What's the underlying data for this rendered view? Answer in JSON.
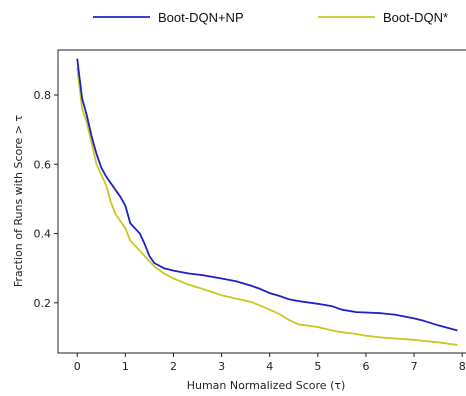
{
  "chart_data": {
    "type": "line",
    "title": "",
    "xlabel": "Human Normalized Score (τ)",
    "ylabel": "Fraction of Runs with Score > τ",
    "xlim": [
      -0.4,
      8.1
    ],
    "ylim": [
      0.055,
      0.93
    ],
    "xticks": [
      0,
      1,
      2,
      3,
      4,
      5,
      6,
      7,
      8
    ],
    "xtick_labels": [
      "0",
      "1",
      "2",
      "3",
      "4",
      "5",
      "6",
      "7",
      "8"
    ],
    "yticks": [
      0.2,
      0.4,
      0.6,
      0.8
    ],
    "ytick_labels": [
      "0.2",
      "0.4",
      "0.6",
      "0.8"
    ],
    "grid": false,
    "legend_position": "top (above plot), two columns",
    "series": [
      {
        "name": "Boot-DQN+NP",
        "color": "#1f1fc8",
        "x": [
          0.0,
          0.1,
          0.2,
          0.3,
          0.4,
          0.5,
          0.6,
          0.7,
          0.8,
          0.9,
          1.0,
          1.1,
          1.2,
          1.3,
          1.4,
          1.5,
          1.6,
          1.8,
          2.0,
          2.3,
          2.6,
          3.0,
          3.3,
          3.6,
          3.8,
          4.0,
          4.2,
          4.4,
          4.6,
          5.0,
          5.3,
          5.5,
          5.8,
          6.0,
          6.3,
          6.6,
          7.0,
          7.2,
          7.5,
          7.9
        ],
        "y": [
          0.905,
          0.79,
          0.74,
          0.68,
          0.63,
          0.59,
          0.565,
          0.545,
          0.525,
          0.505,
          0.48,
          0.43,
          0.415,
          0.4,
          0.37,
          0.335,
          0.315,
          0.3,
          0.293,
          0.285,
          0.28,
          0.27,
          0.262,
          0.25,
          0.24,
          0.228,
          0.22,
          0.21,
          0.205,
          0.197,
          0.19,
          0.18,
          0.173,
          0.172,
          0.17,
          0.166,
          0.155,
          0.148,
          0.135,
          0.12
        ]
      },
      {
        "name": "Boot-DQN*",
        "color": "#c8c81e",
        "x": [
          0.0,
          0.1,
          0.2,
          0.3,
          0.4,
          0.5,
          0.6,
          0.7,
          0.8,
          0.9,
          1.0,
          1.1,
          1.2,
          1.3,
          1.4,
          1.5,
          1.6,
          1.8,
          2.0,
          2.3,
          2.6,
          3.0,
          3.3,
          3.6,
          3.8,
          4.0,
          4.2,
          4.4,
          4.6,
          5.0,
          5.3,
          5.5,
          5.8,
          6.0,
          6.3,
          6.6,
          7.0,
          7.2,
          7.5,
          7.9
        ],
        "y": [
          0.88,
          0.76,
          0.72,
          0.66,
          0.6,
          0.57,
          0.54,
          0.49,
          0.455,
          0.435,
          0.415,
          0.38,
          0.365,
          0.35,
          0.335,
          0.32,
          0.305,
          0.285,
          0.27,
          0.253,
          0.24,
          0.222,
          0.212,
          0.203,
          0.192,
          0.18,
          0.168,
          0.15,
          0.138,
          0.13,
          0.12,
          0.115,
          0.11,
          0.105,
          0.1,
          0.097,
          0.093,
          0.09,
          0.086,
          0.078
        ]
      }
    ]
  }
}
